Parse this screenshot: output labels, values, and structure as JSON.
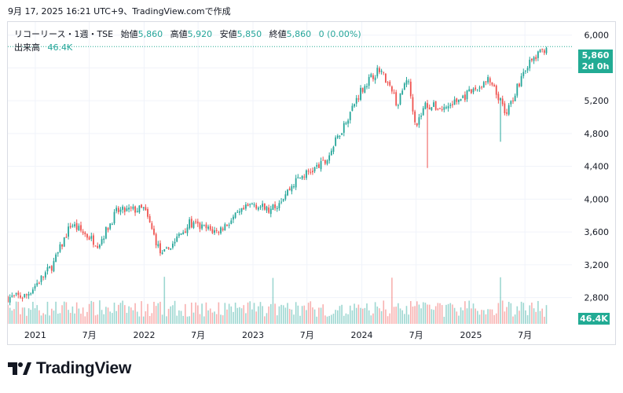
{
  "caption": "9月 17, 2025 16:21 UTC+9、TradingView.comで作成",
  "legend": {
    "symbol": "リコーリース・1週・TSE",
    "open_label": "始値",
    "open": "5,860",
    "high_label": "高値",
    "high": "5,920",
    "low_label": "安値",
    "low": "5,850",
    "close_label": "終値",
    "close": "5,860",
    "change": "0 (0.00%)",
    "volume_label": "出来高",
    "volume": "46.4K"
  },
  "price_badge": {
    "price": "5,860",
    "countdown": "2d 0h"
  },
  "volume_badge": "46.4K",
  "brand": "TradingView",
  "colors": {
    "up": "#26a69a",
    "down": "#ef5350",
    "badge": "#22ab94",
    "grid": "#f0f3fa",
    "text": "#131722"
  },
  "chart_data": {
    "type": "candlestick",
    "interval": "weekly",
    "y_ticks": [
      "6,000",
      "5,600",
      "5,200",
      "4,800",
      "4,400",
      "4,000",
      "3,600",
      "3,200",
      "2,800"
    ],
    "x_ticks": [
      "2021",
      "7月",
      "2022",
      "7月",
      "2023",
      "7月",
      "2024",
      "7月",
      "2025",
      "7月"
    ],
    "ylim": [
      2480,
      6160
    ],
    "grid": true,
    "price_anchors": [
      {
        "date": "2020-10",
        "close": 2800
      },
      {
        "date": "2020-12",
        "close": 2820
      },
      {
        "date": "2021-03",
        "close": 3200
      },
      {
        "date": "2021-05",
        "close": 3700
      },
      {
        "date": "2021-08",
        "close": 3450
      },
      {
        "date": "2021-10",
        "close": 3850
      },
      {
        "date": "2022-01",
        "close": 3880
      },
      {
        "date": "2022-03",
        "close": 3300
      },
      {
        "date": "2022-06",
        "close": 3700
      },
      {
        "date": "2022-09",
        "close": 3600
      },
      {
        "date": "2023-01",
        "close": 3950
      },
      {
        "date": "2023-03",
        "close": 3850
      },
      {
        "date": "2023-06",
        "close": 4250
      },
      {
        "date": "2023-09",
        "close": 4450
      },
      {
        "date": "2023-11",
        "close": 4900
      },
      {
        "date": "2024-01",
        "close": 5350
      },
      {
        "date": "2024-03",
        "close": 5600
      },
      {
        "date": "2024-05",
        "close": 5150
      },
      {
        "date": "2024-06",
        "close": 5500
      },
      {
        "date": "2024-07",
        "close": 4900
      },
      {
        "date": "2024-08",
        "close": 5150
      },
      {
        "date": "2024-10",
        "close": 5100
      },
      {
        "date": "2025-01",
        "close": 5300
      },
      {
        "date": "2025-03",
        "close": 5450
      },
      {
        "date": "2025-05",
        "close": 5050
      },
      {
        "date": "2025-07",
        "close": 5600
      },
      {
        "date": "2025-09",
        "close": 5860
      }
    ],
    "notable_wicks": [
      {
        "date": "2024-08",
        "low": 4380
      },
      {
        "date": "2025-04",
        "low": 4700
      }
    ],
    "volume_spikes": [
      {
        "date": "2022-03",
        "volume": "high"
      },
      {
        "date": "2023-03",
        "volume": "high"
      },
      {
        "date": "2024-04",
        "volume": "high"
      },
      {
        "date": "2025-04",
        "volume": "high"
      }
    ]
  }
}
